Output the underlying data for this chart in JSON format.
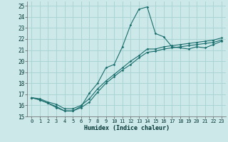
{
  "xlabel": "Humidex (Indice chaleur)",
  "background_color": "#cce8e8",
  "grid_color": "#aad4d4",
  "line_color": "#1a6e6e",
  "xlim": [
    -0.5,
    23.5
  ],
  "ylim": [
    15,
    25.4
  ],
  "x_ticks": [
    0,
    1,
    2,
    3,
    4,
    5,
    6,
    7,
    8,
    9,
    10,
    11,
    12,
    13,
    14,
    15,
    16,
    17,
    18,
    19,
    20,
    21,
    22,
    23
  ],
  "y_ticks": [
    15,
    16,
    17,
    18,
    19,
    20,
    21,
    22,
    23,
    24,
    25
  ],
  "series": {
    "line1_x": [
      0,
      1,
      2,
      3,
      4,
      5,
      6,
      7,
      8,
      9,
      10,
      11,
      12,
      13,
      14,
      15,
      16,
      17,
      18,
      19,
      20,
      21,
      22,
      23
    ],
    "line1_y": [
      16.7,
      16.5,
      16.2,
      15.9,
      15.5,
      15.5,
      15.9,
      17.1,
      18.0,
      19.4,
      19.7,
      21.3,
      23.3,
      24.7,
      24.9,
      22.5,
      22.2,
      21.3,
      21.2,
      21.1,
      21.3,
      21.2,
      21.5,
      21.8
    ],
    "line2_x": [
      0,
      1,
      2,
      3,
      4,
      5,
      6,
      7,
      8,
      9,
      10,
      11,
      12,
      13,
      14,
      15,
      16,
      17,
      18,
      19,
      20,
      21,
      22,
      23
    ],
    "line2_y": [
      16.7,
      16.6,
      16.3,
      16.1,
      15.7,
      15.7,
      16.0,
      16.6,
      17.5,
      18.2,
      18.8,
      19.4,
      20.0,
      20.5,
      21.1,
      21.1,
      21.3,
      21.4,
      21.5,
      21.6,
      21.7,
      21.8,
      21.9,
      22.1
    ],
    "line3_x": [
      0,
      1,
      2,
      3,
      4,
      5,
      6,
      7,
      8,
      9,
      10,
      11,
      12,
      13,
      14,
      15,
      16,
      17,
      18,
      19,
      20,
      21,
      22,
      23
    ],
    "line3_y": [
      16.7,
      16.5,
      16.2,
      15.8,
      15.5,
      15.5,
      15.8,
      16.3,
      17.2,
      18.0,
      18.6,
      19.2,
      19.7,
      20.3,
      20.8,
      20.9,
      21.1,
      21.2,
      21.3,
      21.4,
      21.5,
      21.6,
      21.7,
      21.9
    ]
  }
}
